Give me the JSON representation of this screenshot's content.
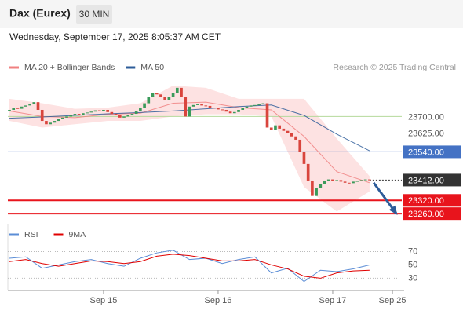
{
  "header": {
    "title": "Dax (Eurex)",
    "timeframe": "30 MIN",
    "date": "Wednesday, September 17, 2025 8:05:37 AM CET",
    "credit": "Research © 2025 Trading Central"
  },
  "chart_data": [
    {
      "type": "candlestick",
      "x": [
        0,
        1,
        2,
        3,
        4,
        5,
        6,
        7,
        8,
        9,
        10,
        11,
        12,
        13,
        14,
        15,
        16,
        17,
        18,
        19,
        20,
        21,
        22,
        23,
        24,
        25,
        26,
        27,
        28,
        29,
        30,
        31,
        32,
        33,
        34,
        35,
        36,
        37,
        38,
        39,
        40,
        41,
        42,
        43,
        44,
        45,
        46,
        47,
        48,
        49,
        50,
        51,
        52,
        53,
        54,
        55,
        56,
        57,
        58,
        59,
        60,
        61,
        62,
        63,
        64,
        65,
        66,
        67,
        68,
        69,
        70,
        71,
        72,
        73,
        74,
        75,
        76,
        77,
        78,
        79,
        80,
        81,
        82,
        83,
        84,
        85,
        86,
        87,
        88
      ],
      "close": [
        23730,
        23738,
        23735,
        23745,
        23750,
        23758,
        23765,
        23730,
        23680,
        23665,
        23672,
        23680,
        23688,
        23695,
        23700,
        23708,
        23712,
        23705,
        23715,
        23718,
        23722,
        23728,
        23725,
        23730,
        23720,
        23712,
        23705,
        23695,
        23700,
        23708,
        23712,
        23725,
        23740,
        23760,
        23790,
        23805,
        23800,
        23790,
        23775,
        23790,
        23805,
        23830,
        23790,
        23700,
        23745,
        23752,
        23755,
        23750,
        23748,
        23740,
        23738,
        23732,
        23730,
        23722,
        23715,
        23720,
        23730,
        23740,
        23745,
        23750,
        23752,
        23755,
        23760,
        23650,
        23640,
        23660,
        23645,
        23635,
        23625,
        23610,
        23595,
        23540,
        23485,
        23410,
        23340,
        23375,
        23395,
        23410,
        23415,
        23410,
        23412,
        23405,
        23400,
        23398,
        23405,
        23408,
        23412,
        23415,
        23412
      ],
      "up_color": "#3a9a5a",
      "down_color": "#d9453d",
      "series": [
        {
          "name": "MA 20 + Bollinger Bands",
          "color": "#f08080",
          "band_color": "#fde2e2",
          "x": [
            0,
            8,
            16,
            24,
            32,
            40,
            48,
            56,
            64,
            72,
            80,
            88
          ],
          "values": [
            23725,
            23700,
            23695,
            23710,
            23715,
            23760,
            23765,
            23740,
            23730,
            23610,
            23450,
            23400
          ],
          "upper": [
            23780,
            23760,
            23735,
            23740,
            23760,
            23840,
            23830,
            23780,
            23780,
            23780,
            23600,
            23430
          ],
          "lower": [
            23680,
            23650,
            23665,
            23680,
            23680,
            23700,
            23710,
            23710,
            23700,
            23380,
            23270,
            23360
          ]
        },
        {
          "name": "MA 50",
          "color": "#2d5c99",
          "x": [
            0,
            8,
            16,
            24,
            32,
            40,
            48,
            56,
            64,
            72,
            80,
            88
          ],
          "values": [
            23692,
            23698,
            23705,
            23712,
            23718,
            23725,
            23735,
            23745,
            23752,
            23705,
            23620,
            23545
          ]
        }
      ],
      "price_lines": [
        {
          "value": 23700,
          "label": "23700.00",
          "color": "#b5d99c",
          "style": "level"
        },
        {
          "value": 23625,
          "label": "23625.00",
          "color": "#b5d99c",
          "style": "level"
        },
        {
          "value": 23540,
          "label": "23540.00",
          "color": "#4472c4",
          "style": "pivot"
        },
        {
          "value": 23412,
          "label": "23412.00",
          "color": "#333333",
          "style": "last"
        },
        {
          "value": 23320,
          "label": "23320.00",
          "color": "#e8141c",
          "style": "target"
        },
        {
          "value": 23260,
          "label": "23260.00",
          "color": "#e8141c",
          "style": "target"
        }
      ],
      "projection": {
        "x": [
          89,
          94.5
        ],
        "values": [
          23400,
          23262
        ],
        "color": "#2d5c99"
      },
      "xlim": [
        0,
        95.5
      ],
      "ylim": [
        23225,
        23890
      ]
    },
    {
      "type": "line",
      "series": [
        {
          "name": "RSI",
          "color": "#5b8dd6",
          "x": [
            0,
            4,
            8,
            12,
            16,
            20,
            24,
            28,
            32,
            36,
            40,
            44,
            48,
            52,
            56,
            60,
            64,
            68,
            72,
            76,
            80,
            84,
            88
          ],
          "values": [
            60,
            62,
            45,
            50,
            55,
            58,
            52,
            48,
            60,
            68,
            72,
            58,
            60,
            52,
            58,
            62,
            38,
            45,
            25,
            42,
            40,
            44,
            50
          ]
        },
        {
          "name": "9MA",
          "color": "#e00000",
          "x": [
            0,
            4,
            8,
            12,
            16,
            20,
            24,
            28,
            32,
            36,
            40,
            44,
            48,
            52,
            56,
            60,
            64,
            68,
            72,
            76,
            80,
            84,
            88
          ],
          "values": [
            55,
            58,
            52,
            48,
            52,
            56,
            55,
            52,
            55,
            63,
            66,
            64,
            60,
            56,
            56,
            58,
            50,
            44,
            33,
            30,
            38,
            41,
            42
          ]
        }
      ],
      "xlim": [
        0,
        95.5
      ],
      "ylim": [
        14,
        80
      ],
      "yticks": [
        30,
        50,
        70
      ],
      "grid": true,
      "xticks": [
        {
          "value": 23,
          "label": "Sep 15"
        },
        {
          "value": 51,
          "label": "Sep 16"
        },
        {
          "value": 79,
          "label": "Sep 17"
        },
        {
          "value": 93.6,
          "label": "Sep 25"
        }
      ]
    }
  ]
}
